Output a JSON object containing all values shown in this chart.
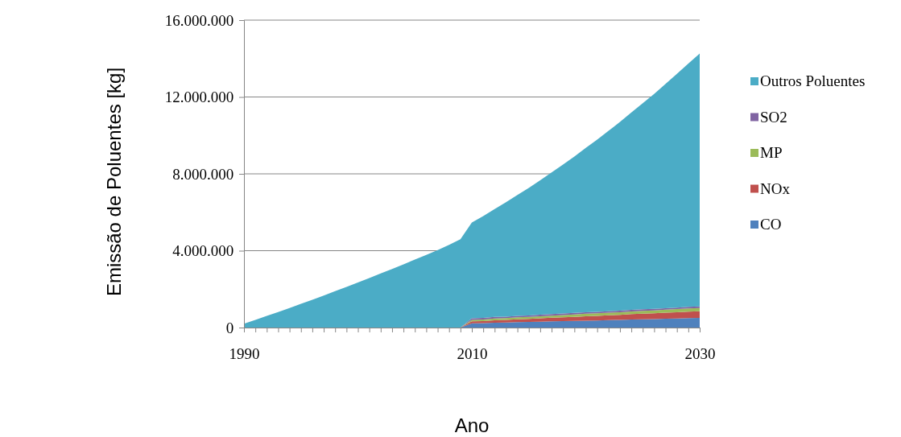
{
  "chart_data": {
    "type": "area",
    "stacked": true,
    "xlabel": "Ano",
    "ylabel": "Emissão de Poluentes [kg]",
    "x": [
      1990,
      1991,
      1992,
      1993,
      1994,
      1995,
      1996,
      1997,
      1998,
      1999,
      2000,
      2001,
      2002,
      2003,
      2004,
      2005,
      2006,
      2007,
      2008,
      2009,
      2010,
      2011,
      2012,
      2013,
      2014,
      2015,
      2016,
      2017,
      2018,
      2019,
      2020,
      2021,
      2022,
      2023,
      2024,
      2025,
      2026,
      2027,
      2028,
      2029,
      2030
    ],
    "series": [
      {
        "name": "CO",
        "color": "#4f81bd",
        "values": [
          0,
          0,
          0,
          0,
          0,
          0,
          0,
          0,
          0,
          0,
          0,
          0,
          0,
          0,
          0,
          0,
          0,
          0,
          0,
          0,
          220000,
          230000,
          250000,
          260000,
          280000,
          290000,
          300000,
          320000,
          330000,
          350000,
          360000,
          370000,
          390000,
          400000,
          420000,
          430000,
          440000,
          460000,
          470000,
          490000,
          500000
        ]
      },
      {
        "name": "NOx",
        "color": "#c0504d",
        "values": [
          0,
          0,
          0,
          0,
          0,
          0,
          0,
          0,
          0,
          0,
          0,
          0,
          0,
          0,
          0,
          0,
          0,
          0,
          0,
          0,
          100000,
          110000,
          130000,
          140000,
          150000,
          160000,
          180000,
          190000,
          200000,
          210000,
          230000,
          240000,
          250000,
          260000,
          280000,
          290000,
          300000,
          310000,
          330000,
          340000,
          350000
        ]
      },
      {
        "name": "MP",
        "color": "#9bbb59",
        "values": [
          0,
          0,
          0,
          0,
          0,
          0,
          0,
          0,
          0,
          0,
          0,
          0,
          0,
          0,
          0,
          0,
          0,
          0,
          0,
          0,
          80000,
          80000,
          90000,
          90000,
          100000,
          100000,
          110000,
          110000,
          120000,
          120000,
          130000,
          130000,
          130000,
          140000,
          140000,
          150000,
          150000,
          160000,
          160000,
          170000,
          170000
        ]
      },
      {
        "name": "SO2",
        "color": "#8064a2",
        "values": [
          0,
          0,
          0,
          0,
          0,
          0,
          0,
          0,
          0,
          0,
          0,
          0,
          0,
          0,
          0,
          0,
          0,
          0,
          0,
          0,
          80000,
          80000,
          80000,
          80000,
          80000,
          80000,
          80000,
          80000,
          80000,
          80000,
          80000,
          80000,
          80000,
          80000,
          80000,
          80000,
          80000,
          80000,
          80000,
          80000,
          80000
        ]
      },
      {
        "name": "Outros Poluentes",
        "color": "#4bacc6",
        "values": [
          200000,
          400000,
          610000,
          810000,
          1020000,
          1240000,
          1450000,
          1670000,
          1900000,
          2120000,
          2350000,
          2580000,
          2820000,
          3050000,
          3290000,
          3540000,
          3780000,
          4030000,
          4300000,
          4600000,
          4990000,
          5300000,
          5620000,
          5950000,
          6290000,
          6640000,
          7000000,
          7370000,
          7750000,
          8140000,
          8550000,
          8960000,
          9390000,
          9820000,
          10270000,
          10730000,
          11190000,
          11670000,
          12160000,
          12660000,
          13160000
        ]
      }
    ],
    "xlim": [
      1990,
      2030
    ],
    "xticks": [
      1990,
      {
        "value": 1991,
        "label": null
      },
      {
        "value": 1992,
        "label": null
      },
      {
        "value": 1993,
        "label": null
      },
      {
        "value": 1994,
        "label": null
      },
      {
        "value": 1995,
        "label": null
      },
      {
        "value": 1996,
        "label": null
      },
      {
        "value": 1997,
        "label": null
      },
      {
        "value": 1998,
        "label": null
      },
      {
        "value": 1999,
        "label": null
      },
      {
        "value": 2000,
        "label": null
      },
      {
        "value": 2001,
        "label": null
      },
      {
        "value": 2002,
        "label": null
      },
      {
        "value": 2003,
        "label": null
      },
      {
        "value": 2004,
        "label": null
      },
      {
        "value": 2005,
        "label": null
      },
      {
        "value": 2006,
        "label": null
      },
      {
        "value": 2007,
        "label": null
      },
      {
        "value": 2008,
        "label": null
      },
      {
        "value": 2009,
        "label": null
      },
      2010,
      {
        "value": 2011,
        "label": null
      },
      {
        "value": 2012,
        "label": null
      },
      {
        "value": 2013,
        "label": null
      },
      {
        "value": 2014,
        "label": null
      },
      {
        "value": 2015,
        "label": null
      },
      {
        "value": 2016,
        "label": null
      },
      {
        "value": 2017,
        "label": null
      },
      {
        "value": 2018,
        "label": null
      },
      {
        "value": 2019,
        "label": null
      },
      {
        "value": 2020,
        "label": null
      },
      {
        "value": 2021,
        "label": null
      },
      {
        "value": 2022,
        "label": null
      },
      {
        "value": 2023,
        "label": null
      },
      {
        "value": 2024,
        "label": null
      },
      {
        "value": 2025,
        "label": null
      },
      {
        "value": 2026,
        "label": null
      },
      {
        "value": 2027,
        "label": null
      },
      {
        "value": 2028,
        "label": null
      },
      {
        "value": 2029,
        "label": null
      },
      2030
    ],
    "ylim": [
      0,
      16000000
    ],
    "yticks": [
      0,
      {
        "value": 4000000,
        "label": "4.000.000"
      },
      {
        "value": 8000000,
        "label": "8.000.000"
      },
      {
        "value": 12000000,
        "label": "12.000.000"
      },
      {
        "value": 16000000,
        "label": "16.000.000"
      }
    ],
    "grid": "y",
    "legend": "right"
  }
}
